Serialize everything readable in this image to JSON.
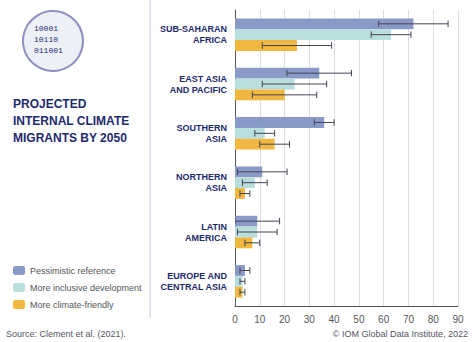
{
  "chart_data": {
    "type": "bar",
    "orientation": "horizontal",
    "title": "PROJECTED\nINTERNAL CLIMATE\nMIGRANTS BY 2050",
    "categories": [
      "SUB-SAHARAN\nAFRICA",
      "EAST ASIA\nAND PACIFIC",
      "SOUTHERN\nASIA",
      "NORTHERN\nASIA",
      "LATIN\nAMERICA",
      "EUROPE AND\nCENTRAL ASIA"
    ],
    "series": [
      {
        "name": "Pessimistic reference",
        "color": "#8a9ac8",
        "values": [
          72,
          34,
          36,
          11,
          9,
          4
        ],
        "errors": [
          14,
          13,
          4,
          10,
          9,
          2
        ]
      },
      {
        "name": "More inclusive development",
        "color": "#b8dedd",
        "values": [
          63,
          24,
          12,
          8,
          9,
          3
        ],
        "errors": [
          8,
          13,
          4,
          5,
          8,
          1
        ]
      },
      {
        "name": "More climate-friendly",
        "color": "#f0b840",
        "values": [
          25,
          20,
          16,
          4,
          7,
          3
        ],
        "errors": [
          14,
          13,
          6,
          2,
          3,
          1
        ]
      }
    ],
    "xlim": [
      0,
      90
    ],
    "xticks": [
      0,
      10,
      20,
      30,
      40,
      50,
      60,
      70,
      80,
      90
    ],
    "grid": true,
    "legend": "lower left",
    "annotations": [
      "10001\n10110\n011001",
      "Source: Clement et al. (2021).",
      "© IOM Global Data Institute, 2022"
    ]
  }
}
